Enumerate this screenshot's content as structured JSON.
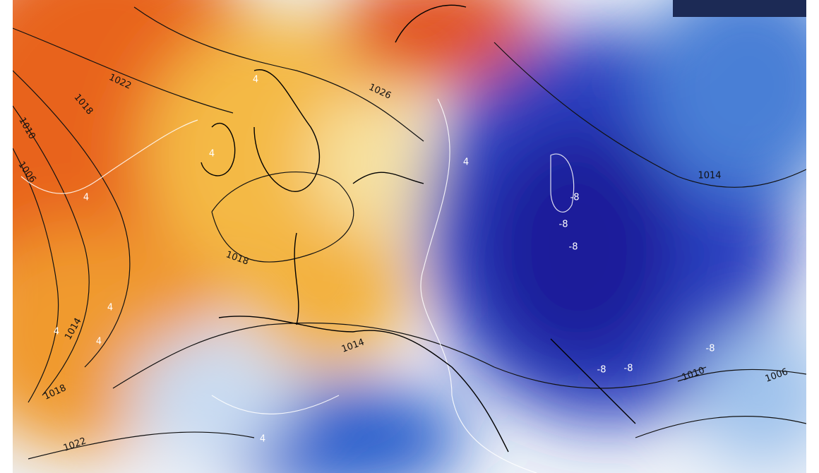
{
  "map": {
    "isobar_labels": [
      "1022",
      "1018",
      "1010",
      "1006",
      "1026",
      "1018",
      "1014",
      "1014",
      "1018",
      "1022",
      "1014",
      "1010",
      "1006"
    ],
    "temperature_labels": [
      "4",
      "4",
      "4",
      "4",
      "4",
      "4",
      "4",
      "4",
      "-8",
      "-8",
      "-8",
      "-8",
      "-8",
      "-8"
    ]
  }
}
